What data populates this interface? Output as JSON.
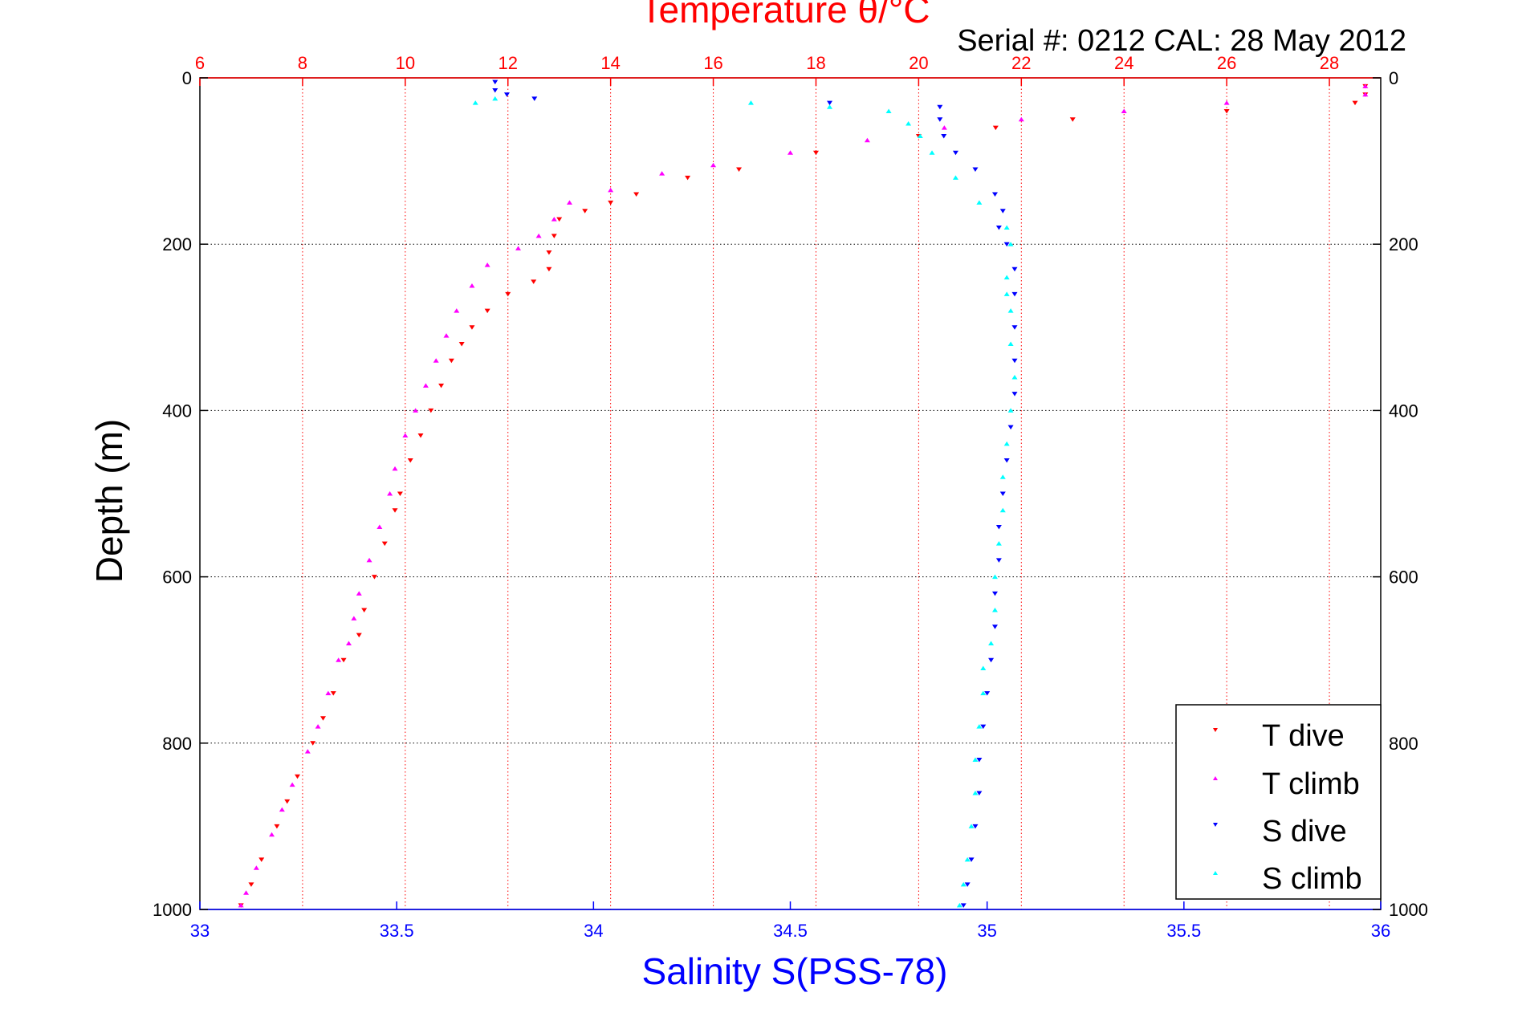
{
  "chart_data": {
    "type": "scatter",
    "title": "Temperature θ/°C",
    "subtitle": "Serial #: 0212  CAL: 28 May 2012",
    "xlabel": "Salinity S(PSS-78)",
    "ylabel": "Depth (m)",
    "top_axis": {
      "label": "Temperature θ/°C",
      "range": [
        6,
        29
      ],
      "ticks": [
        6,
        8,
        10,
        12,
        14,
        16,
        18,
        20,
        22,
        24,
        26,
        28
      ],
      "color": "#ff0000",
      "grid": true
    },
    "bottom_axis": {
      "label": "Salinity S(PSS-78)",
      "range": [
        33,
        36
      ],
      "ticks": [
        "33",
        "33.5",
        "34",
        "34.5",
        "35",
        "35.5",
        "36"
      ],
      "color": "#0000ff"
    },
    "y_axis": {
      "label": "Depth (m)",
      "range": [
        0,
        1000
      ],
      "reversed": true,
      "ticks": [
        0,
        200,
        400,
        600,
        800,
        1000
      ],
      "grid": true,
      "mirror_right": true
    },
    "legend": {
      "position": "bottom-right"
    },
    "series": [
      {
        "name": "T dive",
        "axis": "temperature",
        "color": "#ff0000",
        "marker": "triangle-down",
        "points": [
          [
            28.7,
            10
          ],
          [
            28.7,
            20
          ],
          [
            28.5,
            30
          ],
          [
            26,
            40
          ],
          [
            23,
            50
          ],
          [
            21.5,
            60
          ],
          [
            20,
            70
          ],
          [
            18,
            90
          ],
          [
            16.5,
            110
          ],
          [
            15.5,
            120
          ],
          [
            14.5,
            140
          ],
          [
            14,
            150
          ],
          [
            13.5,
            160
          ],
          [
            13,
            170
          ],
          [
            12.9,
            190
          ],
          [
            12.8,
            210
          ],
          [
            12.8,
            230
          ],
          [
            12.5,
            245
          ],
          [
            12,
            260
          ],
          [
            11.6,
            280
          ],
          [
            11.3,
            300
          ],
          [
            11.1,
            320
          ],
          [
            10.9,
            340
          ],
          [
            10.7,
            370
          ],
          [
            10.5,
            400
          ],
          [
            10.3,
            430
          ],
          [
            10.1,
            460
          ],
          [
            9.9,
            500
          ],
          [
            9.8,
            520
          ],
          [
            9.6,
            560
          ],
          [
            9.4,
            600
          ],
          [
            9.2,
            640
          ],
          [
            9.1,
            670
          ],
          [
            8.8,
            700
          ],
          [
            8.6,
            740
          ],
          [
            8.4,
            770
          ],
          [
            8.2,
            800
          ],
          [
            7.9,
            840
          ],
          [
            7.7,
            870
          ],
          [
            7.5,
            900
          ],
          [
            7.2,
            940
          ],
          [
            7,
            970
          ],
          [
            6.8,
            995
          ]
        ]
      },
      {
        "name": "T climb",
        "axis": "temperature",
        "color": "#ff00ff",
        "marker": "triangle-up",
        "points": [
          [
            28.7,
            10
          ],
          [
            28.7,
            20
          ],
          [
            26,
            30
          ],
          [
            24,
            40
          ],
          [
            22,
            50
          ],
          [
            20.5,
            60
          ],
          [
            19,
            75
          ],
          [
            17.5,
            90
          ],
          [
            16,
            105
          ],
          [
            15,
            115
          ],
          [
            14,
            135
          ],
          [
            13.2,
            150
          ],
          [
            12.9,
            170
          ],
          [
            12.6,
            190
          ],
          [
            12.2,
            205
          ],
          [
            11.6,
            225
          ],
          [
            11.3,
            250
          ],
          [
            11,
            280
          ],
          [
            10.8,
            310
          ],
          [
            10.6,
            340
          ],
          [
            10.4,
            370
          ],
          [
            10.2,
            400
          ],
          [
            10,
            430
          ],
          [
            9.8,
            470
          ],
          [
            9.7,
            500
          ],
          [
            9.5,
            540
          ],
          [
            9.3,
            580
          ],
          [
            9.1,
            620
          ],
          [
            9,
            650
          ],
          [
            8.9,
            680
          ],
          [
            8.7,
            700
          ],
          [
            8.5,
            740
          ],
          [
            8.3,
            780
          ],
          [
            8.1,
            810
          ],
          [
            7.8,
            850
          ],
          [
            7.6,
            880
          ],
          [
            7.4,
            910
          ],
          [
            7.1,
            950
          ],
          [
            6.9,
            980
          ],
          [
            6.8,
            995
          ]
        ]
      },
      {
        "name": "S dive",
        "axis": "salinity",
        "color": "#0000ff",
        "marker": "triangle-down",
        "points": [
          [
            33.75,
            5
          ],
          [
            33.75,
            15
          ],
          [
            33.78,
            20
          ],
          [
            33.85,
            25
          ],
          [
            34.6,
            30
          ],
          [
            34.88,
            35
          ],
          [
            34.88,
            50
          ],
          [
            34.89,
            70
          ],
          [
            34.92,
            90
          ],
          [
            34.97,
            110
          ],
          [
            35.02,
            140
          ],
          [
            35.04,
            160
          ],
          [
            35.03,
            180
          ],
          [
            35.05,
            200
          ],
          [
            35.07,
            230
          ],
          [
            35.07,
            260
          ],
          [
            35.07,
            300
          ],
          [
            35.07,
            340
          ],
          [
            35.07,
            380
          ],
          [
            35.06,
            420
          ],
          [
            35.05,
            460
          ],
          [
            35.04,
            500
          ],
          [
            35.03,
            540
          ],
          [
            35.03,
            580
          ],
          [
            35.02,
            620
          ],
          [
            35.02,
            660
          ],
          [
            35.01,
            700
          ],
          [
            35,
            740
          ],
          [
            34.99,
            780
          ],
          [
            34.98,
            820
          ],
          [
            34.98,
            860
          ],
          [
            34.97,
            900
          ],
          [
            34.96,
            940
          ],
          [
            34.95,
            970
          ],
          [
            34.94,
            995
          ]
        ]
      },
      {
        "name": "S climb",
        "axis": "salinity",
        "color": "#00ffff",
        "marker": "triangle-up",
        "points": [
          [
            33.7,
            30
          ],
          [
            33.75,
            25
          ],
          [
            34.4,
            30
          ],
          [
            34.6,
            35
          ],
          [
            34.75,
            40
          ],
          [
            34.8,
            55
          ],
          [
            34.83,
            70
          ],
          [
            34.86,
            90
          ],
          [
            34.92,
            120
          ],
          [
            34.98,
            150
          ],
          [
            35.05,
            180
          ],
          [
            35.06,
            200
          ],
          [
            35.05,
            240
          ],
          [
            35.05,
            260
          ],
          [
            35.06,
            280
          ],
          [
            35.06,
            320
          ],
          [
            35.07,
            360
          ],
          [
            35.06,
            400
          ],
          [
            35.05,
            440
          ],
          [
            35.04,
            480
          ],
          [
            35.04,
            520
          ],
          [
            35.03,
            560
          ],
          [
            35.02,
            600
          ],
          [
            35.02,
            640
          ],
          [
            35.01,
            680
          ],
          [
            34.99,
            710
          ],
          [
            34.99,
            740
          ],
          [
            34.98,
            780
          ],
          [
            34.97,
            820
          ],
          [
            34.97,
            860
          ],
          [
            34.96,
            900
          ],
          [
            34.95,
            940
          ],
          [
            34.94,
            970
          ],
          [
            34.93,
            995
          ]
        ]
      }
    ]
  }
}
